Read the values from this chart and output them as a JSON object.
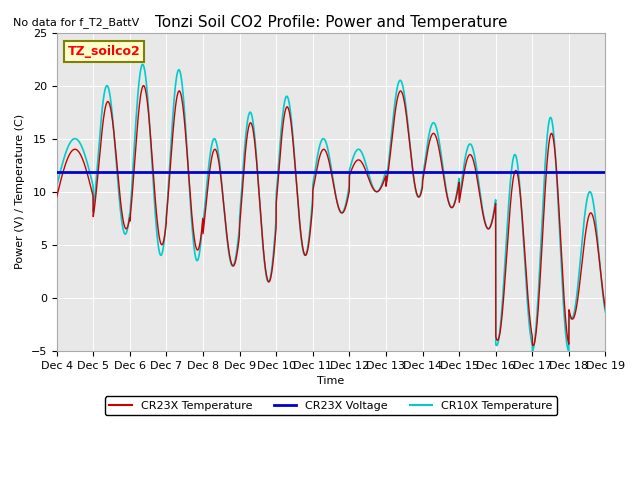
{
  "title": "Tonzi Soil CO2 Profile: Power and Temperature",
  "no_data_text": "No data for f_T2_BattV",
  "ylabel": "Power (V) / Temperature (C)",
  "xlabel": "Time",
  "ylim": [
    -5,
    25
  ],
  "xlim": [
    0,
    15
  ],
  "plot_bg_color": "#e8e8e8",
  "voltage_line_y": 11.9,
  "voltage_color": "#0000cc",
  "cr23x_color": "#cc0000",
  "cr10x_color": "#00cccc",
  "legend_label_cr23x": "CR23X Temperature",
  "legend_label_voltage": "CR23X Voltage",
  "legend_label_cr10x": "CR10X Temperature",
  "inset_label": "TZ_soilco2",
  "xtick_labels": [
    "Dec 4",
    "Dec 5",
    "Dec 6",
    "Dec 7",
    "Dec 8",
    "Dec 9",
    "Dec 10",
    "Dec 11",
    "Dec 12",
    "Dec 13",
    "Dec 14",
    "Dec 15",
    "Dec 16",
    "Dec 17",
    "Dec 18",
    "Dec 19"
  ],
  "xtick_positions": [
    0,
    1,
    2,
    3,
    4,
    5,
    6,
    7,
    8,
    9,
    10,
    11,
    12,
    13,
    14,
    15
  ],
  "ytick_positions": [
    -5,
    0,
    5,
    10,
    15,
    20,
    25
  ]
}
